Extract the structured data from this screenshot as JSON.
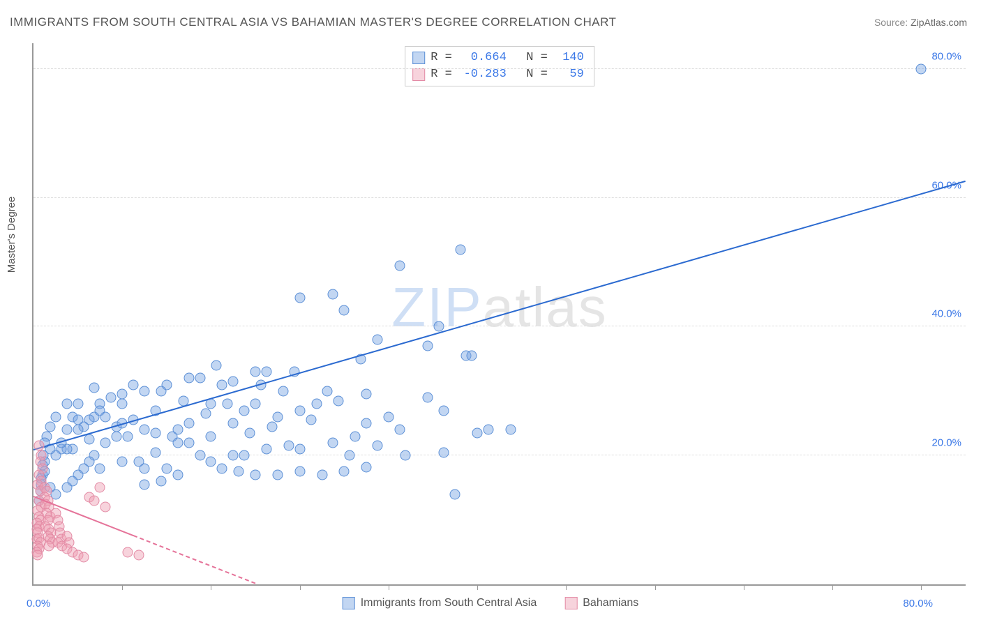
{
  "title": "IMMIGRANTS FROM SOUTH CENTRAL ASIA VS BAHAMIAN MASTER'S DEGREE CORRELATION CHART",
  "source_label": "Source:",
  "source_value": "ZipAtlas.com",
  "ylabel": "Master's Degree",
  "watermark_bold": "ZIP",
  "watermark_rest": "atlas",
  "chart": {
    "type": "scatter",
    "background_color": "#ffffff",
    "axis_color": "#999999",
    "grid_color": "#dddddd",
    "grid_dash": true,
    "xlim": [
      0,
      84
    ],
    "ylim": [
      0,
      84
    ],
    "x_origin_label": "0.0%",
    "x_max_label": "80.0%",
    "x_max_value": 80,
    "x_tick_positions": [
      8,
      16,
      24,
      32,
      40,
      48,
      56,
      64,
      72,
      80
    ],
    "y_ticks": [
      {
        "v": 20,
        "label": "20.0%"
      },
      {
        "v": 40,
        "label": "40.0%"
      },
      {
        "v": 60,
        "label": "60.0%"
      },
      {
        "v": 80,
        "label": "80.0%"
      }
    ],
    "tick_label_color": "#3b78e7",
    "tick_label_fontsize": 15,
    "marker_radius": 7.5,
    "marker_border_width": 1.2,
    "series": [
      {
        "id": "blue",
        "legend_label": "Immigrants from South Central Asia",
        "fill": "rgba(120,165,226,0.45)",
        "stroke": "#5b8fd6",
        "R_label": "R =",
        "R": "0.664",
        "N_label": "N =",
        "N": "140",
        "stat_color": "#3b78e7",
        "trend": {
          "x1": 0,
          "y1": 20.8,
          "x2": 84,
          "y2": 62.5,
          "color": "#2b6ad0",
          "width": 2.2,
          "dash": false
        },
        "points": [
          [
            80,
            80
          ],
          [
            38.5,
            52
          ],
          [
            33,
            49.5
          ],
          [
            27,
            45
          ],
          [
            28,
            42.5
          ],
          [
            36.5,
            40
          ],
          [
            39,
            35.5
          ],
          [
            39.5,
            35.5
          ],
          [
            35.5,
            37
          ],
          [
            31,
            38
          ],
          [
            29.5,
            35
          ],
          [
            24,
            44.5
          ],
          [
            21,
            33
          ],
          [
            20,
            33
          ],
          [
            18,
            31.5
          ],
          [
            17,
            31
          ],
          [
            16,
            28
          ],
          [
            15,
            32
          ],
          [
            14,
            32
          ],
          [
            12,
            31
          ],
          [
            11.5,
            30
          ],
          [
            10,
            30
          ],
          [
            8,
            29.5
          ],
          [
            8,
            28
          ],
          [
            9,
            25.5
          ],
          [
            10,
            24
          ],
          [
            11,
            23.5
          ],
          [
            12.5,
            23
          ],
          [
            13,
            22
          ],
          [
            14,
            22
          ],
          [
            7,
            29
          ],
          [
            6,
            28
          ],
          [
            5.5,
            26
          ],
          [
            5,
            25.5
          ],
          [
            4.5,
            24.5
          ],
          [
            4,
            24
          ],
          [
            3.5,
            21
          ],
          [
            3,
            21
          ],
          [
            2.5,
            21
          ],
          [
            2,
            20
          ],
          [
            2.5,
            22
          ],
          [
            3,
            24
          ],
          [
            3.5,
            26
          ],
          [
            4,
            28
          ],
          [
            6,
            27
          ],
          [
            6.5,
            26
          ],
          [
            7.5,
            24.5
          ],
          [
            8.5,
            23
          ],
          [
            1.5,
            21
          ],
          [
            1,
            19
          ],
          [
            0.8,
            17
          ],
          [
            0.7,
            15.5
          ],
          [
            1,
            17.5
          ],
          [
            1.5,
            15
          ],
          [
            2,
            14
          ],
          [
            10,
            18
          ],
          [
            12,
            18
          ],
          [
            15,
            20
          ],
          [
            16,
            19
          ],
          [
            17,
            18
          ],
          [
            18,
            20
          ],
          [
            19,
            20
          ],
          [
            21,
            21
          ],
          [
            23,
            21.5
          ],
          [
            24,
            21
          ],
          [
            28.5,
            20
          ],
          [
            37,
            20.5
          ],
          [
            40,
            23.5
          ],
          [
            41,
            24
          ],
          [
            26.5,
            30
          ],
          [
            27.5,
            28.5
          ],
          [
            30,
            25
          ],
          [
            32,
            26
          ],
          [
            33,
            24
          ],
          [
            35.5,
            29
          ],
          [
            37,
            27
          ],
          [
            24,
            27
          ],
          [
            22,
            26
          ],
          [
            20,
            28
          ],
          [
            19,
            27
          ],
          [
            18,
            25
          ],
          [
            16,
            23
          ],
          [
            14,
            25
          ],
          [
            13,
            24
          ],
          [
            11,
            27
          ],
          [
            9,
            31
          ],
          [
            8,
            25
          ],
          [
            7.5,
            23
          ],
          [
            6.5,
            22
          ],
          [
            5.5,
            20
          ],
          [
            5,
            19
          ],
          [
            4.5,
            18
          ],
          [
            4,
            17
          ],
          [
            3.5,
            16
          ],
          [
            3,
            15
          ],
          [
            18.5,
            17.5
          ],
          [
            20,
            17
          ],
          [
            22,
            17
          ],
          [
            24,
            17.5
          ],
          [
            26,
            17
          ],
          [
            28,
            17.5
          ],
          [
            30,
            18.2
          ],
          [
            13,
            17
          ],
          [
            11.5,
            16
          ],
          [
            10,
            15.5
          ],
          [
            30,
            29.5
          ],
          [
            38,
            14
          ],
          [
            23.5,
            33
          ],
          [
            16.5,
            34
          ],
          [
            43,
            24
          ],
          [
            13.5,
            28.5
          ],
          [
            11,
            20.5
          ],
          [
            9.5,
            19
          ],
          [
            8,
            19
          ],
          [
            6,
            18
          ],
          [
            5,
            22.5
          ],
          [
            4,
            25.5
          ],
          [
            3,
            28
          ],
          [
            2,
            26
          ],
          [
            1.5,
            24.5
          ],
          [
            1.2,
            23
          ],
          [
            1,
            22
          ],
          [
            0.9,
            20
          ],
          [
            0.8,
            18.5
          ],
          [
            0.7,
            16.5
          ],
          [
            0.6,
            14.5
          ],
          [
            0.5,
            13
          ],
          [
            5.5,
            30.5
          ],
          [
            15.5,
            26.5
          ],
          [
            19.5,
            23.5
          ],
          [
            21.5,
            24.5
          ],
          [
            25,
            25.5
          ],
          [
            31,
            21.5
          ],
          [
            33.5,
            20
          ],
          [
            29,
            23
          ],
          [
            27,
            22
          ],
          [
            25.5,
            28
          ],
          [
            22.5,
            30
          ],
          [
            20.5,
            31
          ],
          [
            17.5,
            28
          ]
        ]
      },
      {
        "id": "pink",
        "legend_label": "Bahamians",
        "fill": "rgba(238,158,178,0.45)",
        "stroke": "#e38ba5",
        "R_label": "R =",
        "R": "-0.283",
        "N_label": "N =",
        "N": "59",
        "stat_color": "#3b78e7",
        "trend": {
          "x1": 0,
          "y1": 13.5,
          "x2": 20,
          "y2": 0,
          "color": "#e57399",
          "width": 2,
          "dash": true,
          "solid_until_x": 9
        },
        "points": [
          [
            0.5,
            21.5
          ],
          [
            0.7,
            20
          ],
          [
            0.6,
            19
          ],
          [
            0.8,
            18
          ],
          [
            0.5,
            17
          ],
          [
            0.7,
            16
          ],
          [
            0.4,
            15.5
          ],
          [
            0.6,
            14.5
          ],
          [
            0.5,
            13
          ],
          [
            0.7,
            12
          ],
          [
            0.4,
            11.5
          ],
          [
            0.5,
            10.5
          ],
          [
            0.6,
            10
          ],
          [
            0.3,
            9.5
          ],
          [
            0.5,
            9
          ],
          [
            0.3,
            8.5
          ],
          [
            0.4,
            8
          ],
          [
            0.3,
            7
          ],
          [
            0.5,
            7.2
          ],
          [
            0.6,
            6.5
          ],
          [
            0.4,
            6
          ],
          [
            0.5,
            5.5
          ],
          [
            0.3,
            5
          ],
          [
            0.4,
            4.5
          ],
          [
            1,
            15
          ],
          [
            1.2,
            14.5
          ],
          [
            1,
            13.5
          ],
          [
            1.3,
            13
          ],
          [
            1.1,
            12.5
          ],
          [
            1.4,
            12
          ],
          [
            1.2,
            11
          ],
          [
            1.5,
            10.5
          ],
          [
            1.3,
            10
          ],
          [
            1.1,
            9
          ],
          [
            1.4,
            8.5
          ],
          [
            1.6,
            8
          ],
          [
            1.3,
            7.5
          ],
          [
            1.5,
            7
          ],
          [
            1.7,
            6.5
          ],
          [
            1.4,
            6
          ],
          [
            2,
            11
          ],
          [
            2.2,
            10
          ],
          [
            2.3,
            9
          ],
          [
            2.4,
            8
          ],
          [
            2.5,
            7
          ],
          [
            2.2,
            6.5
          ],
          [
            2.6,
            6
          ],
          [
            3,
            7.5
          ],
          [
            3.2,
            6.5
          ],
          [
            3,
            5.5
          ],
          [
            3.5,
            5
          ],
          [
            4,
            4.5
          ],
          [
            4.5,
            4.2
          ],
          [
            5,
            13.5
          ],
          [
            5.5,
            13
          ],
          [
            6,
            15
          ],
          [
            6.5,
            12
          ],
          [
            8.5,
            5
          ],
          [
            9.5,
            4.5
          ]
        ]
      }
    ]
  }
}
